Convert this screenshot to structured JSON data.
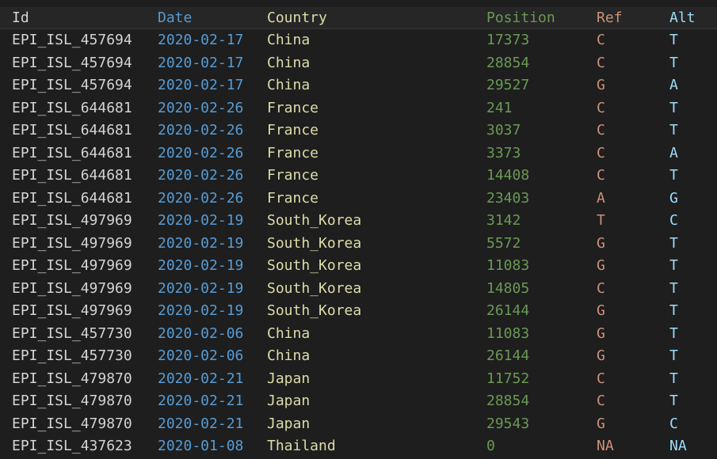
{
  "header": {
    "id": "Id",
    "date": "Date",
    "country": "Country",
    "position": "Position",
    "ref": "Ref",
    "alt": "Alt"
  },
  "rows": [
    {
      "id": "EPI_ISL_457694",
      "date": "2020-02-17",
      "country": "China",
      "position": "17373",
      "ref": "C",
      "alt": "T"
    },
    {
      "id": "EPI_ISL_457694",
      "date": "2020-02-17",
      "country": "China",
      "position": "28854",
      "ref": "C",
      "alt": "T"
    },
    {
      "id": "EPI_ISL_457694",
      "date": "2020-02-17",
      "country": "China",
      "position": "29527",
      "ref": "G",
      "alt": "A"
    },
    {
      "id": "EPI_ISL_644681",
      "date": "2020-02-26",
      "country": "France",
      "position": "241",
      "ref": "C",
      "alt": "T"
    },
    {
      "id": "EPI_ISL_644681",
      "date": "2020-02-26",
      "country": "France",
      "position": "3037",
      "ref": "C",
      "alt": "T"
    },
    {
      "id": "EPI_ISL_644681",
      "date": "2020-02-26",
      "country": "France",
      "position": "3373",
      "ref": "C",
      "alt": "A"
    },
    {
      "id": "EPI_ISL_644681",
      "date": "2020-02-26",
      "country": "France",
      "position": "14408",
      "ref": "C",
      "alt": "T"
    },
    {
      "id": "EPI_ISL_644681",
      "date": "2020-02-26",
      "country": "France",
      "position": "23403",
      "ref": "A",
      "alt": "G"
    },
    {
      "id": "EPI_ISL_497969",
      "date": "2020-02-19",
      "country": "South_Korea",
      "position": "3142",
      "ref": "T",
      "alt": "C"
    },
    {
      "id": "EPI_ISL_497969",
      "date": "2020-02-19",
      "country": "South_Korea",
      "position": "5572",
      "ref": "G",
      "alt": "T"
    },
    {
      "id": "EPI_ISL_497969",
      "date": "2020-02-19",
      "country": "South_Korea",
      "position": "11083",
      "ref": "G",
      "alt": "T"
    },
    {
      "id": "EPI_ISL_497969",
      "date": "2020-02-19",
      "country": "South_Korea",
      "position": "14805",
      "ref": "C",
      "alt": "T"
    },
    {
      "id": "EPI_ISL_497969",
      "date": "2020-02-19",
      "country": "South_Korea",
      "position": "26144",
      "ref": "G",
      "alt": "T"
    },
    {
      "id": "EPI_ISL_457730",
      "date": "2020-02-06",
      "country": "China",
      "position": "11083",
      "ref": "G",
      "alt": "T"
    },
    {
      "id": "EPI_ISL_457730",
      "date": "2020-02-06",
      "country": "China",
      "position": "26144",
      "ref": "G",
      "alt": "T"
    },
    {
      "id": "EPI_ISL_479870",
      "date": "2020-02-21",
      "country": "Japan",
      "position": "11752",
      "ref": "C",
      "alt": "T"
    },
    {
      "id": "EPI_ISL_479870",
      "date": "2020-02-21",
      "country": "Japan",
      "position": "28854",
      "ref": "C",
      "alt": "T"
    },
    {
      "id": "EPI_ISL_479870",
      "date": "2020-02-21",
      "country": "Japan",
      "position": "29543",
      "ref": "G",
      "alt": "C"
    },
    {
      "id": "EPI_ISL_437623",
      "date": "2020-01-08",
      "country": "Thailand",
      "position": "0",
      "ref": "NA",
      "alt": "NA"
    }
  ],
  "colors": {
    "background": "#1e1e1e",
    "id": "#d4d4d4",
    "date": "#569cd6",
    "country": "#dcdcaa",
    "position": "#6a9955",
    "ref": "#ce9178",
    "alt": "#9cdcfe"
  }
}
